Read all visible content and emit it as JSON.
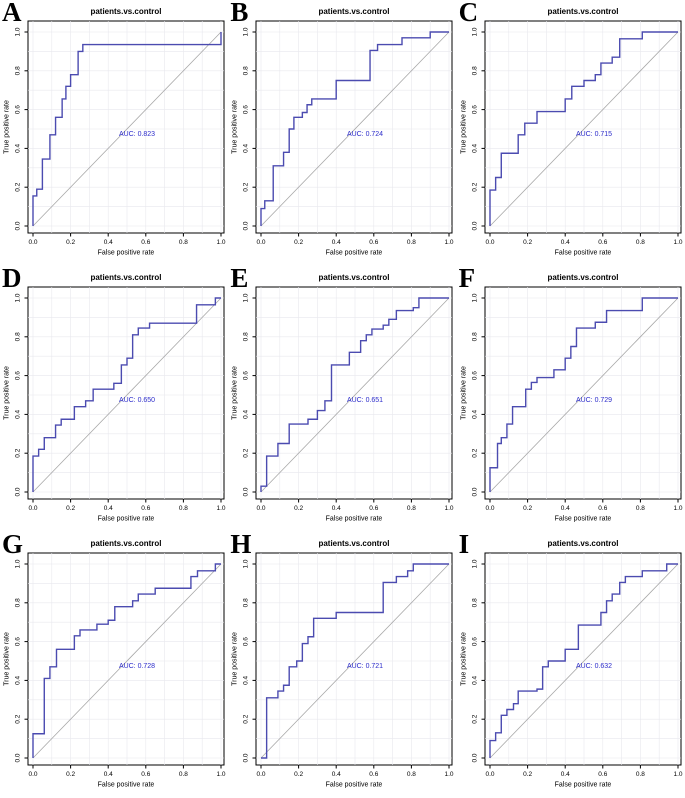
{
  "shared": {
    "title": "patients.vs.control",
    "xlabel": "False positive rate",
    "ylabel": "True positive rate",
    "ticks": [
      0.0,
      0.2,
      0.4,
      0.6,
      0.8,
      1.0
    ],
    "xtick_labels": [
      "0.0",
      "0.2",
      "0.4",
      "0.6",
      "0.8",
      "1.0"
    ],
    "ytick_labels": [
      "0.0",
      "0.2",
      "0.4",
      "0.6",
      "0.8",
      "1.0"
    ],
    "grid_step": 0.1,
    "xlim": [
      0,
      1
    ],
    "ylim": [
      0,
      1
    ],
    "grid_on": true,
    "colors": {
      "curve": "#4b4bb0",
      "diagonal": "#a8a8a8",
      "grid": "#e8e8ee",
      "auc_text": "#2d2dcb",
      "axis_text": "#000000",
      "plot_border": "#000000"
    }
  },
  "chart_data": [
    {
      "type": "line",
      "panel": "A",
      "title": "patients.vs.control",
      "xlabel": "False positive rate",
      "ylabel": "True positive rate",
      "auc": 0.823,
      "auc_label": "AUC: 0.823",
      "points": [
        [
          0,
          0
        ],
        [
          0,
          0.155
        ],
        [
          0.02,
          0.155
        ],
        [
          0.02,
          0.19
        ],
        [
          0.05,
          0.19
        ],
        [
          0.05,
          0.345
        ],
        [
          0.09,
          0.345
        ],
        [
          0.09,
          0.47
        ],
        [
          0.12,
          0.47
        ],
        [
          0.12,
          0.56
        ],
        [
          0.155,
          0.56
        ],
        [
          0.155,
          0.655
        ],
        [
          0.175,
          0.655
        ],
        [
          0.175,
          0.72
        ],
        [
          0.2,
          0.72
        ],
        [
          0.2,
          0.78
        ],
        [
          0.24,
          0.78
        ],
        [
          0.24,
          0.9
        ],
        [
          0.265,
          0.9
        ],
        [
          0.265,
          0.935
        ],
        [
          1,
          0.935
        ],
        [
          1,
          1
        ]
      ]
    },
    {
      "type": "line",
      "panel": "B",
      "title": "patients.vs.control",
      "xlabel": "False positive rate",
      "ylabel": "True positive rate",
      "auc": 0.724,
      "auc_label": "AUC: 0.724",
      "points": [
        [
          0,
          0
        ],
        [
          0,
          0.09
        ],
        [
          0.02,
          0.09
        ],
        [
          0.02,
          0.13
        ],
        [
          0.065,
          0.13
        ],
        [
          0.065,
          0.31
        ],
        [
          0.12,
          0.31
        ],
        [
          0.12,
          0.38
        ],
        [
          0.15,
          0.38
        ],
        [
          0.15,
          0.5
        ],
        [
          0.175,
          0.5
        ],
        [
          0.175,
          0.56
        ],
        [
          0.22,
          0.56
        ],
        [
          0.22,
          0.585
        ],
        [
          0.245,
          0.585
        ],
        [
          0.245,
          0.625
        ],
        [
          0.27,
          0.625
        ],
        [
          0.27,
          0.655
        ],
        [
          0.4,
          0.655
        ],
        [
          0.4,
          0.75
        ],
        [
          0.58,
          0.75
        ],
        [
          0.58,
          0.905
        ],
        [
          0.62,
          0.905
        ],
        [
          0.62,
          0.935
        ],
        [
          0.75,
          0.935
        ],
        [
          0.75,
          0.97
        ],
        [
          0.9,
          0.97
        ],
        [
          0.9,
          1
        ],
        [
          1,
          1
        ]
      ]
    },
    {
      "type": "line",
      "panel": "C",
      "title": "patients.vs.control",
      "xlabel": "False positive rate",
      "ylabel": "True positive rate",
      "auc": 0.715,
      "auc_label": "AUC: 0.715",
      "points": [
        [
          0,
          0
        ],
        [
          0,
          0.185
        ],
        [
          0.03,
          0.185
        ],
        [
          0.03,
          0.25
        ],
        [
          0.06,
          0.25
        ],
        [
          0.06,
          0.375
        ],
        [
          0.15,
          0.375
        ],
        [
          0.15,
          0.47
        ],
        [
          0.185,
          0.47
        ],
        [
          0.185,
          0.53
        ],
        [
          0.25,
          0.53
        ],
        [
          0.25,
          0.59
        ],
        [
          0.4,
          0.59
        ],
        [
          0.4,
          0.655
        ],
        [
          0.435,
          0.655
        ],
        [
          0.435,
          0.72
        ],
        [
          0.5,
          0.72
        ],
        [
          0.5,
          0.75
        ],
        [
          0.56,
          0.75
        ],
        [
          0.56,
          0.78
        ],
        [
          0.59,
          0.78
        ],
        [
          0.59,
          0.84
        ],
        [
          0.65,
          0.84
        ],
        [
          0.65,
          0.87
        ],
        [
          0.69,
          0.87
        ],
        [
          0.69,
          0.965
        ],
        [
          0.81,
          0.965
        ],
        [
          0.81,
          1
        ],
        [
          1,
          1
        ]
      ]
    },
    {
      "type": "line",
      "panel": "D",
      "title": "patients.vs.control",
      "xlabel": "False positive rate",
      "ylabel": "True positive rate",
      "auc": 0.65,
      "auc_label": "AUC: 0.650",
      "points": [
        [
          0,
          0
        ],
        [
          0,
          0.185
        ],
        [
          0.03,
          0.185
        ],
        [
          0.03,
          0.22
        ],
        [
          0.06,
          0.22
        ],
        [
          0.06,
          0.28
        ],
        [
          0.12,
          0.28
        ],
        [
          0.12,
          0.345
        ],
        [
          0.15,
          0.345
        ],
        [
          0.15,
          0.375
        ],
        [
          0.22,
          0.375
        ],
        [
          0.22,
          0.44
        ],
        [
          0.28,
          0.44
        ],
        [
          0.28,
          0.47
        ],
        [
          0.32,
          0.47
        ],
        [
          0.32,
          0.53
        ],
        [
          0.43,
          0.53
        ],
        [
          0.43,
          0.56
        ],
        [
          0.47,
          0.56
        ],
        [
          0.47,
          0.655
        ],
        [
          0.5,
          0.655
        ],
        [
          0.5,
          0.69
        ],
        [
          0.53,
          0.69
        ],
        [
          0.53,
          0.81
        ],
        [
          0.56,
          0.81
        ],
        [
          0.56,
          0.845
        ],
        [
          0.62,
          0.845
        ],
        [
          0.62,
          0.87
        ],
        [
          0.87,
          0.87
        ],
        [
          0.87,
          0.965
        ],
        [
          0.97,
          0.965
        ],
        [
          0.97,
          1
        ],
        [
          1,
          1
        ]
      ]
    },
    {
      "type": "line",
      "panel": "E",
      "title": "patients.vs.control",
      "xlabel": "False positive rate",
      "ylabel": "True positive rate",
      "auc": 0.651,
      "auc_label": "AUC: 0.651",
      "points": [
        [
          0,
          0
        ],
        [
          0,
          0.03
        ],
        [
          0.03,
          0.03
        ],
        [
          0.03,
          0.185
        ],
        [
          0.09,
          0.185
        ],
        [
          0.09,
          0.25
        ],
        [
          0.15,
          0.25
        ],
        [
          0.15,
          0.35
        ],
        [
          0.25,
          0.35
        ],
        [
          0.25,
          0.375
        ],
        [
          0.3,
          0.375
        ],
        [
          0.3,
          0.42
        ],
        [
          0.34,
          0.42
        ],
        [
          0.34,
          0.47
        ],
        [
          0.375,
          0.47
        ],
        [
          0.375,
          0.655
        ],
        [
          0.47,
          0.655
        ],
        [
          0.47,
          0.72
        ],
        [
          0.53,
          0.72
        ],
        [
          0.53,
          0.78
        ],
        [
          0.56,
          0.78
        ],
        [
          0.56,
          0.81
        ],
        [
          0.59,
          0.81
        ],
        [
          0.59,
          0.84
        ],
        [
          0.65,
          0.84
        ],
        [
          0.65,
          0.86
        ],
        [
          0.68,
          0.86
        ],
        [
          0.68,
          0.89
        ],
        [
          0.72,
          0.89
        ],
        [
          0.72,
          0.935
        ],
        [
          0.81,
          0.935
        ],
        [
          0.81,
          0.95
        ],
        [
          0.84,
          0.95
        ],
        [
          0.84,
          1
        ],
        [
          1,
          1
        ]
      ]
    },
    {
      "type": "line",
      "panel": "F",
      "title": "patients.vs.control",
      "xlabel": "False positive rate",
      "ylabel": "True positive rate",
      "auc": 0.729,
      "auc_label": "AUC: 0.729",
      "points": [
        [
          0,
          0
        ],
        [
          0,
          0.125
        ],
        [
          0.04,
          0.125
        ],
        [
          0.04,
          0.25
        ],
        [
          0.06,
          0.25
        ],
        [
          0.06,
          0.28
        ],
        [
          0.09,
          0.28
        ],
        [
          0.09,
          0.35
        ],
        [
          0.12,
          0.35
        ],
        [
          0.12,
          0.44
        ],
        [
          0.19,
          0.44
        ],
        [
          0.19,
          0.53
        ],
        [
          0.22,
          0.53
        ],
        [
          0.22,
          0.565
        ],
        [
          0.25,
          0.565
        ],
        [
          0.25,
          0.59
        ],
        [
          0.34,
          0.59
        ],
        [
          0.34,
          0.63
        ],
        [
          0.4,
          0.63
        ],
        [
          0.4,
          0.69
        ],
        [
          0.43,
          0.69
        ],
        [
          0.43,
          0.75
        ],
        [
          0.46,
          0.75
        ],
        [
          0.46,
          0.845
        ],
        [
          0.56,
          0.845
        ],
        [
          0.56,
          0.875
        ],
        [
          0.62,
          0.875
        ],
        [
          0.62,
          0.935
        ],
        [
          0.81,
          0.935
        ],
        [
          0.81,
          1
        ],
        [
          1,
          1
        ]
      ]
    },
    {
      "type": "line",
      "panel": "G",
      "title": "patients.vs.control",
      "xlabel": "False positive rate",
      "ylabel": "True positive rate",
      "auc": 0.728,
      "auc_label": "AUC: 0.728",
      "points": [
        [
          0,
          0
        ],
        [
          0,
          0.125
        ],
        [
          0.06,
          0.125
        ],
        [
          0.06,
          0.41
        ],
        [
          0.09,
          0.41
        ],
        [
          0.09,
          0.47
        ],
        [
          0.125,
          0.47
        ],
        [
          0.125,
          0.56
        ],
        [
          0.22,
          0.56
        ],
        [
          0.22,
          0.63
        ],
        [
          0.25,
          0.63
        ],
        [
          0.25,
          0.66
        ],
        [
          0.34,
          0.66
        ],
        [
          0.34,
          0.69
        ],
        [
          0.4,
          0.69
        ],
        [
          0.4,
          0.71
        ],
        [
          0.435,
          0.71
        ],
        [
          0.435,
          0.78
        ],
        [
          0.53,
          0.78
        ],
        [
          0.53,
          0.81
        ],
        [
          0.56,
          0.81
        ],
        [
          0.56,
          0.845
        ],
        [
          0.65,
          0.845
        ],
        [
          0.65,
          0.875
        ],
        [
          0.84,
          0.875
        ],
        [
          0.84,
          0.935
        ],
        [
          0.875,
          0.935
        ],
        [
          0.875,
          0.965
        ],
        [
          0.97,
          0.965
        ],
        [
          0.97,
          1
        ],
        [
          1,
          1
        ]
      ]
    },
    {
      "type": "line",
      "panel": "H",
      "title": "patients.vs.control",
      "xlabel": "False positive rate",
      "ylabel": "True positive rate",
      "auc": 0.721,
      "auc_label": "AUC: 0.721",
      "points": [
        [
          0,
          0
        ],
        [
          0.03,
          0
        ],
        [
          0.03,
          0.31
        ],
        [
          0.09,
          0.31
        ],
        [
          0.09,
          0.345
        ],
        [
          0.12,
          0.345
        ],
        [
          0.12,
          0.375
        ],
        [
          0.15,
          0.375
        ],
        [
          0.15,
          0.47
        ],
        [
          0.19,
          0.47
        ],
        [
          0.19,
          0.5
        ],
        [
          0.22,
          0.5
        ],
        [
          0.22,
          0.59
        ],
        [
          0.25,
          0.59
        ],
        [
          0.25,
          0.625
        ],
        [
          0.28,
          0.625
        ],
        [
          0.28,
          0.72
        ],
        [
          0.4,
          0.72
        ],
        [
          0.4,
          0.75
        ],
        [
          0.65,
          0.75
        ],
        [
          0.65,
          0.905
        ],
        [
          0.72,
          0.905
        ],
        [
          0.72,
          0.935
        ],
        [
          0.78,
          0.935
        ],
        [
          0.78,
          0.965
        ],
        [
          0.81,
          0.965
        ],
        [
          0.81,
          1
        ],
        [
          1,
          1
        ]
      ]
    },
    {
      "type": "line",
      "panel": "I",
      "title": "patients.vs.control",
      "xlabel": "False positive rate",
      "ylabel": "True positive rate",
      "auc": 0.632,
      "auc_label": "AUC: 0.632",
      "points": [
        [
          0,
          0
        ],
        [
          0,
          0.09
        ],
        [
          0.03,
          0.09
        ],
        [
          0.03,
          0.13
        ],
        [
          0.06,
          0.13
        ],
        [
          0.06,
          0.22
        ],
        [
          0.09,
          0.22
        ],
        [
          0.09,
          0.25
        ],
        [
          0.125,
          0.25
        ],
        [
          0.125,
          0.28
        ],
        [
          0.15,
          0.28
        ],
        [
          0.15,
          0.345
        ],
        [
          0.25,
          0.345
        ],
        [
          0.25,
          0.355
        ],
        [
          0.28,
          0.355
        ],
        [
          0.28,
          0.47
        ],
        [
          0.31,
          0.47
        ],
        [
          0.31,
          0.5
        ],
        [
          0.4,
          0.5
        ],
        [
          0.4,
          0.56
        ],
        [
          0.47,
          0.56
        ],
        [
          0.47,
          0.685
        ],
        [
          0.59,
          0.685
        ],
        [
          0.59,
          0.75
        ],
        [
          0.62,
          0.75
        ],
        [
          0.62,
          0.81
        ],
        [
          0.65,
          0.81
        ],
        [
          0.65,
          0.845
        ],
        [
          0.69,
          0.845
        ],
        [
          0.69,
          0.905
        ],
        [
          0.72,
          0.905
        ],
        [
          0.72,
          0.935
        ],
        [
          0.81,
          0.935
        ],
        [
          0.81,
          0.965
        ],
        [
          0.94,
          0.965
        ],
        [
          0.94,
          1
        ],
        [
          1,
          1
        ]
      ]
    }
  ]
}
